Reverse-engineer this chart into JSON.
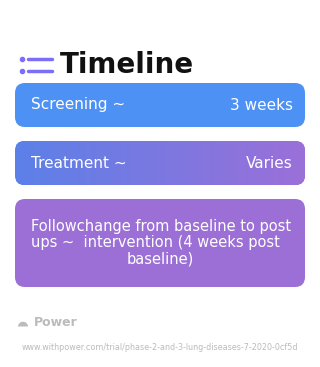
{
  "title": "Timeline",
  "background_color": "#ffffff",
  "title_color": "#111111",
  "title_fontsize": 20,
  "icon_color": "#7c6ef7",
  "boxes": [
    {
      "label_left": "Screening ~",
      "label_right": "3 weeks",
      "bg_color": "#4d91f5",
      "text_color": "#ffffff",
      "fontsize": 11
    },
    {
      "label_left": "Treatment ~",
      "label_right": "Varies",
      "bg_color_left": "#5b80e8",
      "bg_color_right": "#9b6fd8",
      "text_color": "#ffffff",
      "fontsize": 11
    },
    {
      "line1": "Followchange from baseline to post",
      "line2": "ups ~  intervention (4 weeks post",
      "line3": "baseline)",
      "bg_color": "#9b6fd5",
      "text_color": "#ffffff",
      "fontsize": 10.5
    }
  ],
  "footer_logo_text": "Power",
  "footer_logo_color": "#bbbbbb",
  "footer_url": "www.withpower.com/trial/phase-2-and-3-lung-diseases-7-2020-0cf5d",
  "footer_fontsize": 5.8,
  "footer_color": "#bbbbbb"
}
